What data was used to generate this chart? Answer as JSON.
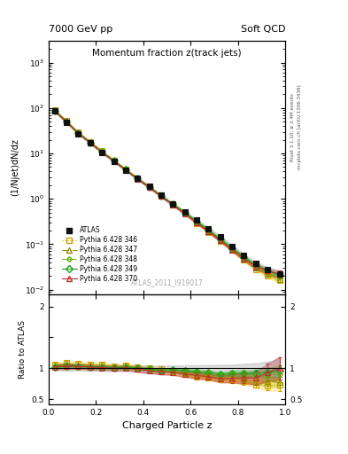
{
  "title_top_left": "7000 GeV pp",
  "title_top_right": "Soft QCD",
  "plot_title": "Momentum fraction z(track jets)",
  "ylabel_main": "(1/Njet)dN/dz",
  "ylabel_ratio": "Ratio to ATLAS",
  "xlabel": "Charged Particle z",
  "watermark": "ATLAS_2011_I919017",
  "right_label": "Rivet 3.1.10; ≥ 2.4M events",
  "right_label2": "mcplots.cern.ch [arXiv:1306.3436]",
  "ylim_main_log": [
    0.008,
    3000
  ],
  "ylim_ratio": [
    0.42,
    2.2
  ],
  "xlim": [
    0.0,
    1.0
  ],
  "series": [
    {
      "label": "ATLAS",
      "color": "#111111",
      "marker": "s",
      "markersize": 4,
      "linestyle": "none",
      "filled": true,
      "z_vals": [
        0.025,
        0.075,
        0.125,
        0.175,
        0.225,
        0.275,
        0.325,
        0.375,
        0.425,
        0.475,
        0.525,
        0.575,
        0.625,
        0.675,
        0.725,
        0.775,
        0.825,
        0.875,
        0.925,
        0.975
      ],
      "y_vals": [
        85,
        48,
        27,
        17,
        10.5,
        6.8,
        4.3,
        2.8,
        1.85,
        1.2,
        0.78,
        0.52,
        0.34,
        0.22,
        0.145,
        0.09,
        0.057,
        0.038,
        0.028,
        0.022
      ],
      "yerr": [
        3,
        2,
        1,
        0.7,
        0.4,
        0.3,
        0.18,
        0.12,
        0.08,
        0.05,
        0.035,
        0.024,
        0.016,
        0.011,
        0.008,
        0.005,
        0.004,
        0.003,
        0.003,
        0.003
      ]
    },
    {
      "label": "Pythia 6.428 346",
      "color": "#c8a000",
      "marker": "s",
      "markersize": 4,
      "linestyle": ":",
      "filled": false,
      "z_vals": [
        0.025,
        0.075,
        0.125,
        0.175,
        0.225,
        0.275,
        0.325,
        0.375,
        0.425,
        0.475,
        0.525,
        0.575,
        0.625,
        0.675,
        0.725,
        0.775,
        0.825,
        0.875,
        0.925,
        0.975
      ],
      "y_vals": [
        90,
        52,
        29,
        18,
        11.2,
        7.0,
        4.5,
        2.85,
        1.85,
        1.18,
        0.74,
        0.47,
        0.29,
        0.185,
        0.118,
        0.073,
        0.045,
        0.028,
        0.02,
        0.016
      ],
      "yerr": [
        2,
        1.5,
        0.8,
        0.5,
        0.3,
        0.2,
        0.12,
        0.08,
        0.05,
        0.03,
        0.02,
        0.015,
        0.01,
        0.007,
        0.005,
        0.004,
        0.003,
        0.002,
        0.002,
        0.002
      ],
      "ratio_band_color": "#ffe060"
    },
    {
      "label": "Pythia 6.428 347",
      "color": "#909000",
      "marker": "^",
      "markersize": 4,
      "linestyle": "-.",
      "filled": false,
      "z_vals": [
        0.025,
        0.075,
        0.125,
        0.175,
        0.225,
        0.275,
        0.325,
        0.375,
        0.425,
        0.475,
        0.525,
        0.575,
        0.625,
        0.675,
        0.725,
        0.775,
        0.825,
        0.875,
        0.925,
        0.975
      ],
      "y_vals": [
        88,
        50,
        28,
        17.5,
        10.8,
        6.9,
        4.4,
        2.82,
        1.82,
        1.16,
        0.75,
        0.48,
        0.3,
        0.192,
        0.122,
        0.076,
        0.047,
        0.03,
        0.022,
        0.017
      ],
      "yerr": [
        2,
        1.5,
        0.8,
        0.5,
        0.3,
        0.2,
        0.12,
        0.08,
        0.05,
        0.03,
        0.02,
        0.015,
        0.01,
        0.007,
        0.005,
        0.004,
        0.003,
        0.002,
        0.002,
        0.002
      ],
      "ratio_band_color": "#c8c820"
    },
    {
      "label": "Pythia 6.428 348",
      "color": "#60b000",
      "marker": "D",
      "markersize": 3,
      "linestyle": "--",
      "filled": false,
      "z_vals": [
        0.025,
        0.075,
        0.125,
        0.175,
        0.225,
        0.275,
        0.325,
        0.375,
        0.425,
        0.475,
        0.525,
        0.575,
        0.625,
        0.675,
        0.725,
        0.775,
        0.825,
        0.875,
        0.925,
        0.975
      ],
      "y_vals": [
        86,
        49,
        27.5,
        17.2,
        10.6,
        6.85,
        4.35,
        2.78,
        1.8,
        1.15,
        0.76,
        0.5,
        0.32,
        0.205,
        0.13,
        0.082,
        0.052,
        0.034,
        0.025,
        0.02
      ],
      "yerr": [
        2,
        1.5,
        0.8,
        0.5,
        0.3,
        0.2,
        0.12,
        0.08,
        0.05,
        0.03,
        0.02,
        0.015,
        0.01,
        0.007,
        0.005,
        0.004,
        0.003,
        0.002,
        0.002,
        0.002
      ],
      "ratio_band_color": "#80e040"
    },
    {
      "label": "Pythia 6.428 349",
      "color": "#20a020",
      "marker": "D",
      "markersize": 4,
      "linestyle": "-",
      "filled": false,
      "z_vals": [
        0.025,
        0.075,
        0.125,
        0.175,
        0.225,
        0.275,
        0.325,
        0.375,
        0.425,
        0.475,
        0.525,
        0.575,
        0.625,
        0.675,
        0.725,
        0.775,
        0.825,
        0.875,
        0.925,
        0.975
      ],
      "y_vals": [
        87,
        50,
        28,
        17.4,
        10.7,
        6.87,
        4.37,
        2.8,
        1.82,
        1.16,
        0.76,
        0.5,
        0.32,
        0.205,
        0.13,
        0.082,
        0.052,
        0.035,
        0.026,
        0.021
      ],
      "yerr": [
        2,
        1.5,
        0.8,
        0.5,
        0.3,
        0.2,
        0.12,
        0.08,
        0.05,
        0.03,
        0.02,
        0.015,
        0.01,
        0.007,
        0.005,
        0.004,
        0.003,
        0.002,
        0.002,
        0.002
      ],
      "ratio_band_color": "#40c840"
    },
    {
      "label": "Pythia 6.428 370",
      "color": "#c03030",
      "marker": "^",
      "markersize": 4,
      "linestyle": "-",
      "filled": false,
      "z_vals": [
        0.025,
        0.075,
        0.125,
        0.175,
        0.225,
        0.275,
        0.325,
        0.375,
        0.425,
        0.475,
        0.525,
        0.575,
        0.625,
        0.675,
        0.725,
        0.775,
        0.825,
        0.875,
        0.925,
        0.975
      ],
      "y_vals": [
        87,
        49.5,
        27.8,
        17.3,
        10.6,
        6.8,
        4.32,
        2.75,
        1.78,
        1.13,
        0.73,
        0.47,
        0.3,
        0.19,
        0.12,
        0.075,
        0.048,
        0.032,
        0.026,
        0.022
      ],
      "yerr": [
        3,
        2,
        1,
        0.7,
        0.4,
        0.3,
        0.18,
        0.12,
        0.08,
        0.05,
        0.035,
        0.024,
        0.016,
        0.011,
        0.008,
        0.006,
        0.005,
        0.004,
        0.004,
        0.004
      ]
    }
  ],
  "atlas_band_color": "#aaaaaa",
  "atlas_band_alpha": 0.4,
  "background_color": "#ffffff"
}
